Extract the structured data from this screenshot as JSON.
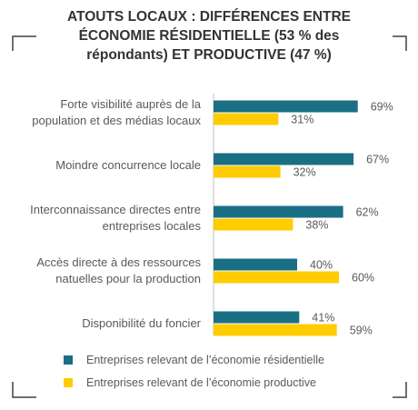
{
  "title_lines": [
    "ATOUTS LOCAUX : DIFFÉRENCES ENTRE",
    "ÉCONOMIE  RÉSIDENTIELLE (53 % des",
    "répondants) ET PRODUCTIVE (47 %)"
  ],
  "colors": {
    "residentielle": "#1B6F84",
    "productive": "#FFCC00",
    "text": "#595959",
    "frame": "#404040"
  },
  "chart_data": {
    "type": "bar",
    "orientation": "horizontal",
    "title": "ATOUTS LOCAUX : DIFFÉRENCES ENTRE ÉCONOMIE  RÉSIDENTIELLE (53 % des répondants) ET PRODUCTIVE (47 %)",
    "categories": [
      [
        "Forte visibilité auprès de la",
        "population et des médias locaux"
      ],
      [
        "Moindre concurrence locale"
      ],
      [
        "Interconnaissance directes entre",
        "entreprises locales"
      ],
      [
        "Accès directe à des ressources",
        "natuelles pour la production"
      ],
      [
        "Disponibilité du foncier"
      ]
    ],
    "series": [
      {
        "name": "Entreprises relevant de l’économie résidentielle",
        "values": [
          69,
          67,
          62,
          40,
          41
        ],
        "labels": [
          "69%",
          "67%",
          "62%",
          "40%",
          "41%"
        ],
        "color": "#1B6F84"
      },
      {
        "name": "Entreprises relevant de l’économie productive",
        "values": [
          31,
          32,
          38,
          60,
          59
        ],
        "labels": [
          "31%",
          "32%",
          "38%",
          "60%",
          "59%"
        ],
        "color": "#FFCC00"
      }
    ],
    "xlim": [
      0,
      100
    ],
    "grid": false,
    "legend_position": "bottom"
  }
}
